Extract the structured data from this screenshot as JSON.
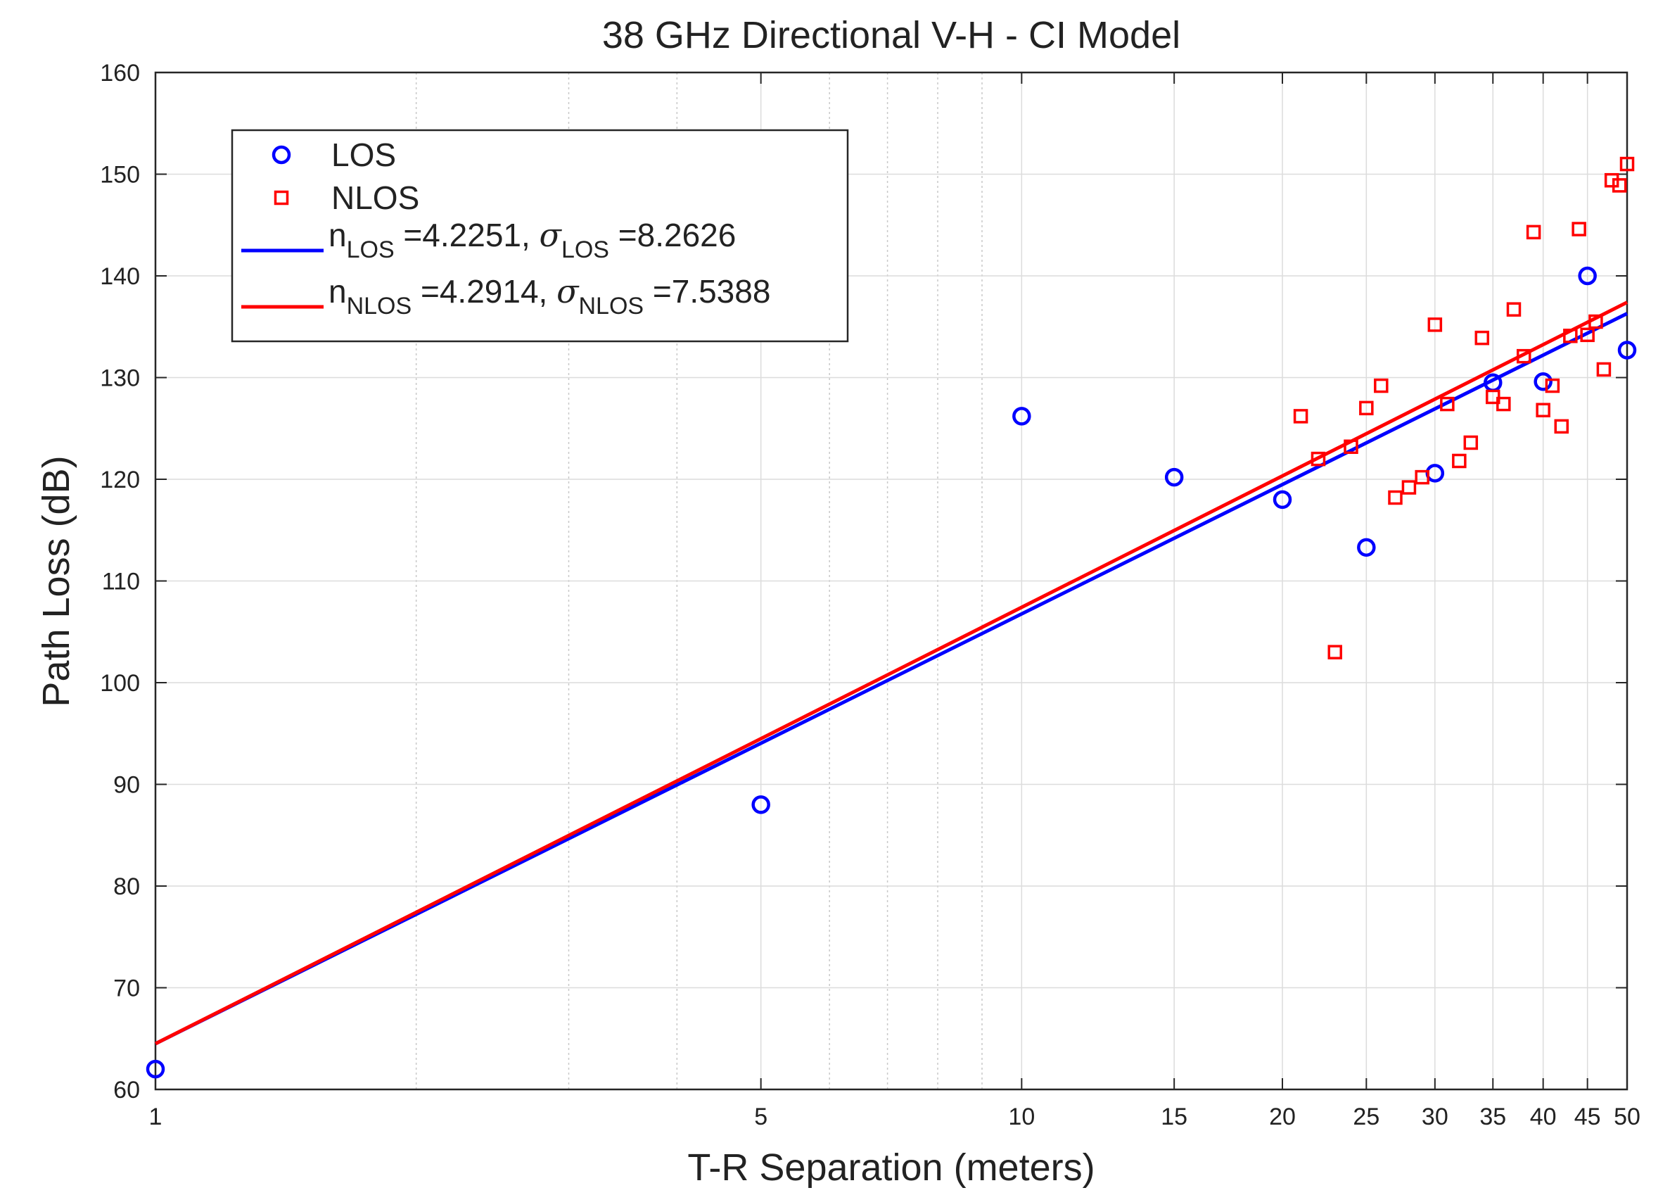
{
  "chart_data": {
    "type": "scatter",
    "title": "38 GHz Directional V-H - CI Model",
    "xlabel": "T-R Separation (meters)",
    "ylabel": "Path Loss (dB)",
    "xscale": "log",
    "xlim": [
      1,
      50
    ],
    "ylim": [
      60,
      160
    ],
    "xticks": [
      1,
      5,
      10,
      15,
      20,
      25,
      30,
      35,
      40,
      45,
      50
    ],
    "xtick_labels": [
      "1",
      "5",
      "10",
      "15",
      "20",
      "25",
      "30",
      "35",
      "40",
      "45",
      "50"
    ],
    "yticks": [
      60,
      70,
      80,
      90,
      100,
      110,
      120,
      130,
      140,
      150,
      160
    ],
    "ytick_labels": [
      "60",
      "70",
      "80",
      "90",
      "100",
      "110",
      "120",
      "130",
      "140",
      "150",
      "160"
    ],
    "grid": true,
    "legend_position": "top-left",
    "series": [
      {
        "name": "LOS",
        "kind": "markers",
        "marker": "circle",
        "color": "#0000ff",
        "points": [
          [
            1,
            62
          ],
          [
            5,
            88
          ],
          [
            10,
            126.2
          ],
          [
            15,
            120.2
          ],
          [
            20,
            118
          ],
          [
            25,
            113.3
          ],
          [
            30,
            120.6
          ],
          [
            35,
            129.5
          ],
          [
            40,
            129.6
          ],
          [
            45,
            140
          ],
          [
            50,
            132.7
          ]
        ]
      },
      {
        "name": "NLOS",
        "kind": "markers",
        "marker": "square",
        "color": "#ff0000",
        "points": [
          [
            21,
            126.2
          ],
          [
            22,
            122
          ],
          [
            23,
            103
          ],
          [
            24,
            123.2
          ],
          [
            25,
            127
          ],
          [
            26,
            129.2
          ],
          [
            27,
            118.2
          ],
          [
            28,
            119.2
          ],
          [
            29,
            120.2
          ],
          [
            30,
            135.2
          ],
          [
            31,
            127.4
          ],
          [
            32,
            121.8
          ],
          [
            33,
            123.6
          ],
          [
            34,
            133.9
          ],
          [
            35,
            128.1
          ],
          [
            36,
            127.4
          ],
          [
            37,
            136.7
          ],
          [
            38,
            132.1
          ],
          [
            39,
            144.3
          ],
          [
            40,
            126.8
          ],
          [
            41,
            129.2
          ],
          [
            42,
            125.2
          ],
          [
            43,
            134.1
          ],
          [
            44,
            144.6
          ],
          [
            45,
            134.2
          ],
          [
            46,
            135.5
          ],
          [
            47,
            130.8
          ],
          [
            48,
            149.4
          ],
          [
            49,
            148.9
          ],
          [
            50,
            151
          ]
        ]
      },
      {
        "name_main": "n",
        "name_sub": "LOS",
        "name_mid": " =4.2251, ",
        "name_sym": "σ",
        "name_sub2": "LOS",
        "name_tail": " =8.2626",
        "kind": "line",
        "color": "#0000ff",
        "fspl_1m": 64.5,
        "n": 4.2251,
        "sigma": 8.2626,
        "points": [
          [
            1,
            64.5
          ],
          [
            50,
            136.3
          ]
        ]
      },
      {
        "name_main": "n",
        "name_sub": "NLOS",
        "name_mid": " =4.2914, ",
        "name_sym": "σ",
        "name_sub2": "NLOS",
        "name_tail": " =7.5388",
        "kind": "line",
        "color": "#ff0000",
        "fspl_1m": 64.5,
        "n": 4.2914,
        "sigma": 7.5388,
        "points": [
          [
            1,
            64.5
          ],
          [
            50,
            137.4
          ]
        ]
      }
    ]
  }
}
